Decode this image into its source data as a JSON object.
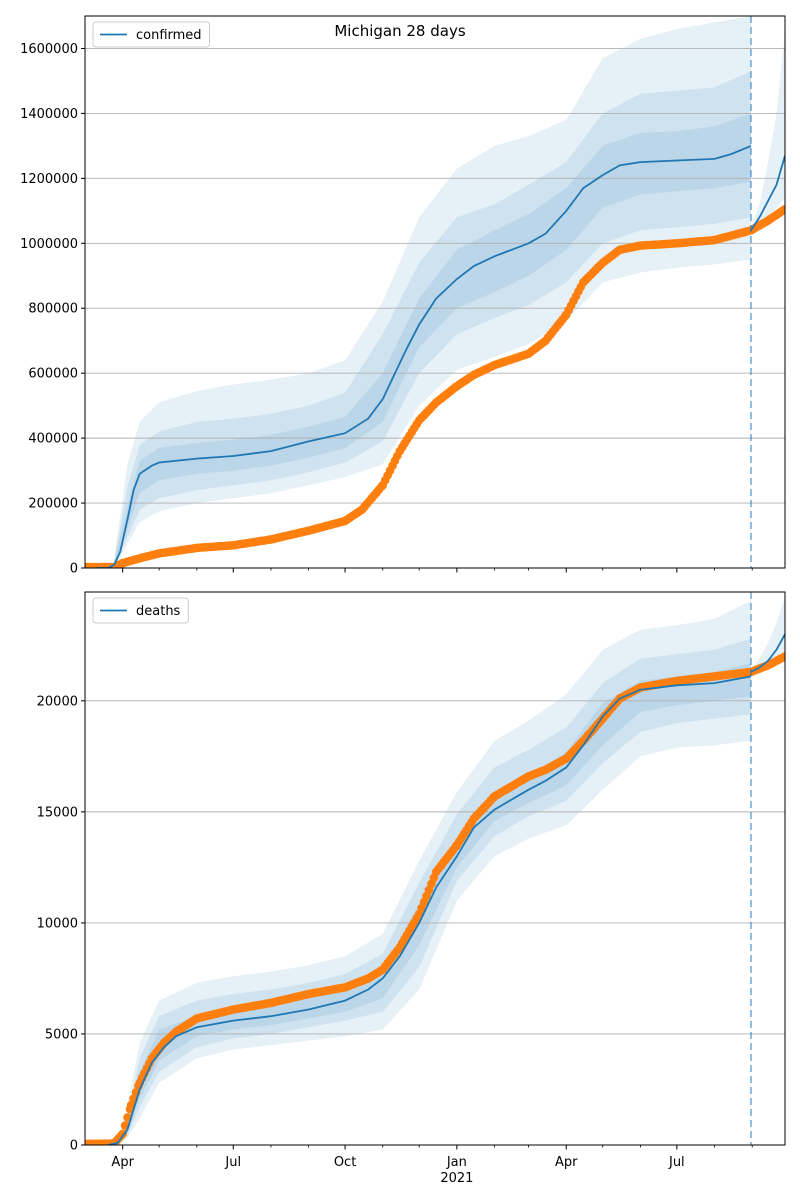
{
  "figure": {
    "title": "Michigan 28 days"
  },
  "colors": {
    "model": "#1f77b4",
    "observed": "#ff7f0e",
    "grid": "#b0b0b0",
    "vline": "#1f77b4"
  },
  "x_axis": {
    "ticks": [
      {
        "date": "2020-04-01",
        "label": "Apr",
        "sublabel": ""
      },
      {
        "date": "2020-07-01",
        "label": "Jul",
        "sublabel": ""
      },
      {
        "date": "2020-10-01",
        "label": "Oct",
        "sublabel": ""
      },
      {
        "date": "2021-01-01",
        "label": "Jan",
        "sublabel": "2021"
      },
      {
        "date": "2021-04-01",
        "label": "Apr",
        "sublabel": ""
      },
      {
        "date": "2021-07-01",
        "label": "Jul",
        "sublabel": ""
      }
    ],
    "minor_ticks": [
      "2020-05-01",
      "2020-06-01",
      "2020-08-01",
      "2020-09-01",
      "2020-11-01",
      "2020-12-01",
      "2021-02-01",
      "2021-03-01",
      "2021-05-01",
      "2021-06-01",
      "2021-08-01",
      "2021-09-01"
    ]
  },
  "chart_data": [
    {
      "type": "line",
      "title": "Michigan 28 days",
      "xlim": [
        "2020-03-01",
        "2021-09-28"
      ],
      "ylim": [
        0,
        1700000
      ],
      "ytick_labels": [
        "0",
        "200000",
        "400000",
        "600000",
        "800000",
        "1000000",
        "1200000",
        "1400000",
        "1600000"
      ],
      "grid": "horizontal",
      "legend_position": "top-left",
      "forecast_start": "2021-08-31",
      "series": [
        {
          "name": "confirmed",
          "kind": "model-median",
          "x": [
            "2020-03-10",
            "2020-03-20",
            "2020-03-25",
            "2020-03-30",
            "2020-04-05",
            "2020-04-10",
            "2020-04-15",
            "2020-04-25",
            "2020-05-01",
            "2020-06-01",
            "2020-07-01",
            "2020-08-01",
            "2020-09-01",
            "2020-10-01",
            "2020-10-20",
            "2020-11-01",
            "2020-11-20",
            "2020-12-01",
            "2020-12-15",
            "2021-01-01",
            "2021-01-15",
            "2021-02-01",
            "2021-03-01",
            "2021-03-15",
            "2021-04-01",
            "2021-04-15",
            "2021-05-01",
            "2021-05-15",
            "2021-06-01",
            "2021-07-01",
            "2021-08-01",
            "2021-08-15",
            "2021-08-31"
          ],
          "y": [
            0,
            0,
            10000,
            50000,
            150000,
            240000,
            290000,
            315000,
            325000,
            337000,
            345000,
            360000,
            390000,
            415000,
            460000,
            520000,
            670000,
            750000,
            830000,
            890000,
            930000,
            960000,
            1000000,
            1030000,
            1100000,
            1170000,
            1210000,
            1240000,
            1250000,
            1255000,
            1260000,
            1275000,
            1300000
          ]
        },
        {
          "name": "",
          "kind": "model-forecast",
          "x": [
            "2021-08-31",
            "2021-09-07",
            "2021-09-14",
            "2021-09-21",
            "2021-09-28"
          ],
          "y": [
            1040000,
            1080000,
            1130000,
            1180000,
            1270000
          ]
        },
        {
          "name": "",
          "kind": "band",
          "x": [
            "2020-03-25",
            "2020-04-05",
            "2020-04-15",
            "2020-05-01",
            "2020-06-01",
            "2020-07-01",
            "2020-08-01",
            "2020-09-01",
            "2020-10-01",
            "2020-11-01",
            "2020-12-01",
            "2021-01-01",
            "2021-02-01",
            "2021-03-01",
            "2021-04-01",
            "2021-05-01",
            "2021-06-01",
            "2021-07-01",
            "2021-08-01",
            "2021-08-31"
          ],
          "y": [
            0,
            75000,
            140000,
            175000,
            200000,
            215000,
            230000,
            255000,
            280000,
            320000,
            500000,
            610000,
            650000,
            690000,
            760000,
            880000,
            910000,
            925000,
            935000,
            950000
          ],
          "y2": [
            30000,
            320000,
            450000,
            510000,
            545000,
            565000,
            580000,
            600000,
            640000,
            820000,
            1080000,
            1230000,
            1300000,
            1330000,
            1380000,
            1570000,
            1630000,
            1660000,
            1680000,
            1700000
          ]
        },
        {
          "name": "",
          "kind": "band",
          "x": [
            "2020-03-25",
            "2020-04-05",
            "2020-04-15",
            "2020-05-01",
            "2020-06-01",
            "2020-07-01",
            "2020-08-01",
            "2020-09-01",
            "2020-10-01",
            "2020-11-01",
            "2020-12-01",
            "2021-01-01",
            "2021-02-01",
            "2021-03-01",
            "2021-04-01",
            "2021-05-01",
            "2021-06-01",
            "2021-07-01",
            "2021-08-01",
            "2021-08-31"
          ],
          "y": [
            0,
            95000,
            180000,
            215000,
            240000,
            255000,
            270000,
            295000,
            325000,
            390000,
            600000,
            720000,
            770000,
            810000,
            880000,
            1000000,
            1040000,
            1050000,
            1060000,
            1080000
          ],
          "y2": [
            25000,
            250000,
            380000,
            420000,
            450000,
            460000,
            475000,
            500000,
            540000,
            720000,
            940000,
            1080000,
            1120000,
            1180000,
            1250000,
            1400000,
            1460000,
            1470000,
            1480000,
            1530000
          ]
        },
        {
          "name": "",
          "kind": "band",
          "x": [
            "2020-03-25",
            "2020-04-05",
            "2020-04-15",
            "2020-05-01",
            "2020-06-01",
            "2020-07-01",
            "2020-08-01",
            "2020-09-01",
            "2020-10-01",
            "2020-11-01",
            "2020-12-01",
            "2021-01-01",
            "2021-02-01",
            "2021-03-01",
            "2021-04-01",
            "2021-05-01",
            "2021-06-01",
            "2021-07-01",
            "2021-08-01",
            "2021-08-31"
          ],
          "y": [
            5000,
            120000,
            230000,
            270000,
            290000,
            300000,
            315000,
            340000,
            370000,
            450000,
            680000,
            800000,
            850000,
            900000,
            980000,
            1110000,
            1150000,
            1160000,
            1170000,
            1190000
          ],
          "y2": [
            18000,
            190000,
            330000,
            370000,
            385000,
            395000,
            410000,
            435000,
            465000,
            600000,
            830000,
            980000,
            1040000,
            1090000,
            1170000,
            1300000,
            1340000,
            1345000,
            1360000,
            1400000
          ]
        },
        {
          "name": "",
          "kind": "band",
          "x": [
            "2021-08-31",
            "2021-09-07",
            "2021-09-14",
            "2021-09-21",
            "2021-09-28"
          ],
          "y": [
            1030000,
            1050000,
            1080000,
            1110000,
            1140000
          ],
          "y2": [
            1050000,
            1120000,
            1250000,
            1400000,
            1650000
          ]
        },
        {
          "name": "",
          "kind": "observed",
          "x": [
            "2020-03-01",
            "2020-03-15",
            "2020-03-25",
            "2020-04-01",
            "2020-04-15",
            "2020-05-01",
            "2020-06-01",
            "2020-07-01",
            "2020-08-01",
            "2020-09-01",
            "2020-10-01",
            "2020-10-15",
            "2020-11-01",
            "2020-11-15",
            "2020-12-01",
            "2020-12-15",
            "2021-01-01",
            "2021-01-15",
            "2021-02-01",
            "2021-03-01",
            "2021-03-15",
            "2021-04-01",
            "2021-04-15",
            "2021-05-01",
            "2021-05-15",
            "2021-06-01",
            "2021-07-01",
            "2021-08-01",
            "2021-08-31",
            "2021-09-14",
            "2021-09-28"
          ],
          "y": [
            3000,
            3000,
            3000,
            15000,
            30000,
            45000,
            62000,
            70000,
            88000,
            115000,
            145000,
            180000,
            255000,
            360000,
            455000,
            510000,
            560000,
            595000,
            625000,
            660000,
            700000,
            780000,
            880000,
            940000,
            980000,
            993000,
            1000000,
            1010000,
            1040000,
            1070000,
            1105000
          ]
        }
      ]
    },
    {
      "type": "line",
      "title": "",
      "xlim": [
        "2020-03-01",
        "2021-09-28"
      ],
      "ylim": [
        0,
        24900
      ],
      "ytick_labels": [
        "0",
        "5000",
        "10000",
        "15000",
        "20000"
      ],
      "grid": "horizontal",
      "legend_position": "top-left",
      "forecast_start": "2021-08-31",
      "series": [
        {
          "name": "deaths",
          "kind": "model-median",
          "x": [
            "2020-03-20",
            "2020-03-28",
            "2020-04-05",
            "2020-04-15",
            "2020-04-25",
            "2020-05-05",
            "2020-05-15",
            "2020-06-01",
            "2020-07-01",
            "2020-08-01",
            "2020-09-01",
            "2020-10-01",
            "2020-10-20",
            "2020-11-01",
            "2020-11-15",
            "2020-12-01",
            "2020-12-15",
            "2021-01-01",
            "2021-01-15",
            "2021-02-01",
            "2021-03-01",
            "2021-03-15",
            "2021-04-01",
            "2021-04-15",
            "2021-05-01",
            "2021-05-15",
            "2021-06-01",
            "2021-07-01",
            "2021-08-01",
            "2021-08-31"
          ],
          "y": [
            0,
            100,
            700,
            2500,
            3700,
            4400,
            4900,
            5300,
            5600,
            5800,
            6100,
            6500,
            7000,
            7500,
            8500,
            10000,
            11600,
            13000,
            14300,
            15100,
            16000,
            16400,
            17000,
            18000,
            19300,
            20100,
            20500,
            20700,
            20800,
            21100
          ]
        },
        {
          "name": "",
          "kind": "model-forecast",
          "x": [
            "2021-08-31",
            "2021-09-07",
            "2021-09-14",
            "2021-09-21",
            "2021-09-28"
          ],
          "y": [
            21300,
            21500,
            21800,
            22300,
            23000
          ]
        },
        {
          "name": "",
          "kind": "band",
          "x": [
            "2020-03-28",
            "2020-04-05",
            "2020-04-15",
            "2020-05-01",
            "2020-06-01",
            "2020-07-01",
            "2020-08-01",
            "2020-09-01",
            "2020-10-01",
            "2020-11-01",
            "2020-12-01",
            "2021-01-01",
            "2021-02-01",
            "2021-03-01",
            "2021-04-01",
            "2021-05-01",
            "2021-06-01",
            "2021-07-01",
            "2021-08-01",
            "2021-08-31"
          ],
          "y": [
            0,
            300,
            1200,
            2800,
            3900,
            4300,
            4500,
            4700,
            4900,
            5200,
            7000,
            11000,
            13000,
            13800,
            14400,
            16000,
            17500,
            17900,
            18000,
            18200
          ],
          "y2": [
            200,
            1800,
            4600,
            6500,
            7300,
            7600,
            7800,
            8100,
            8500,
            9500,
            12800,
            15900,
            18200,
            19100,
            20300,
            22300,
            23200,
            23400,
            23700,
            24500
          ]
        },
        {
          "name": "",
          "kind": "band",
          "x": [
            "2020-03-28",
            "2020-04-05",
            "2020-04-15",
            "2020-05-01",
            "2020-06-01",
            "2020-07-01",
            "2020-08-01",
            "2020-09-01",
            "2020-10-01",
            "2020-11-01",
            "2020-12-01",
            "2021-01-01",
            "2021-02-01",
            "2021-03-01",
            "2021-04-01",
            "2021-05-01",
            "2021-06-01",
            "2021-07-01",
            "2021-08-01",
            "2021-08-31"
          ],
          "y": [
            50,
            450,
            1700,
            3300,
            4400,
            4800,
            5000,
            5300,
            5600,
            6000,
            8000,
            11900,
            13900,
            14800,
            15500,
            17200,
            18600,
            19000,
            19200,
            19400
          ],
          "y2": [
            150,
            1300,
            3900,
            5800,
            6500,
            6800,
            7000,
            7300,
            7700,
            8600,
            11800,
            14900,
            17000,
            17800,
            18800,
            20800,
            21900,
            22100,
            22300,
            22800
          ]
        },
        {
          "name": "",
          "kind": "band",
          "x": [
            "2020-03-28",
            "2020-04-05",
            "2020-04-15",
            "2020-05-01",
            "2020-06-01",
            "2020-07-01",
            "2020-08-01",
            "2020-09-01",
            "2020-10-01",
            "2020-11-01",
            "2020-12-01",
            "2021-01-01",
            "2021-02-01",
            "2021-03-01",
            "2021-04-01",
            "2021-05-01",
            "2021-06-01",
            "2021-07-01",
            "2021-08-01",
            "2021-08-31"
          ],
          "y": [
            80,
            550,
            2100,
            3800,
            4900,
            5200,
            5400,
            5700,
            6000,
            6600,
            9000,
            12500,
            14600,
            15400,
            16200,
            18000,
            19500,
            19800,
            20000,
            20200
          ],
          "y2": [
            120,
            1000,
            3300,
            5200,
            5800,
            6100,
            6300,
            6600,
            7000,
            7800,
            10900,
            13800,
            15800,
            16600,
            17700,
            19900,
            20900,
            21100,
            21300,
            21700
          ]
        },
        {
          "name": "",
          "kind": "band",
          "x": [
            "2021-08-31",
            "2021-09-07",
            "2021-09-14",
            "2021-09-21",
            "2021-09-28"
          ],
          "y": [
            21200,
            21350,
            21550,
            21800,
            22100
          ],
          "y2": [
            21400,
            21900,
            22600,
            23500,
            24700
          ]
        },
        {
          "name": "",
          "kind": "observed",
          "x": [
            "2020-03-01",
            "2020-03-20",
            "2020-03-25",
            "2020-04-01",
            "2020-04-08",
            "2020-04-15",
            "2020-04-25",
            "2020-05-05",
            "2020-05-15",
            "2020-06-01",
            "2020-07-01",
            "2020-08-01",
            "2020-09-01",
            "2020-10-01",
            "2020-10-20",
            "2020-11-01",
            "2020-11-15",
            "2020-12-01",
            "2020-12-15",
            "2021-01-01",
            "2021-01-15",
            "2021-02-01",
            "2021-03-01",
            "2021-03-15",
            "2021-04-01",
            "2021-04-15",
            "2021-05-01",
            "2021-05-15",
            "2021-06-01",
            "2021-07-01",
            "2021-08-01",
            "2021-08-31",
            "2021-09-14",
            "2021-09-28"
          ],
          "y": [
            50,
            60,
            80,
            500,
            1800,
            2800,
            3900,
            4600,
            5100,
            5700,
            6100,
            6400,
            6800,
            7100,
            7500,
            7900,
            8900,
            10400,
            12300,
            13500,
            14700,
            15700,
            16600,
            16900,
            17400,
            18200,
            19200,
            20100,
            20600,
            20900,
            21100,
            21300,
            21600,
            22000
          ]
        }
      ]
    }
  ]
}
